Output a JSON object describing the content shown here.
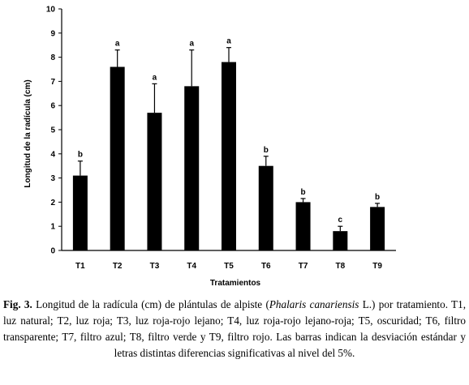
{
  "chart_data": {
    "type": "bar",
    "title": "",
    "xlabel": "Tratamientos",
    "ylabel": "Longitud de la radícula (cm)",
    "ylim": [
      0,
      10
    ],
    "yticks": [
      "0",
      "1",
      "2",
      "3",
      "4",
      "5",
      "6",
      "7",
      "8",
      "9",
      "10"
    ],
    "categories": [
      "T1",
      "T2",
      "T3",
      "T4",
      "T5",
      "T6",
      "T7",
      "T8",
      "T9"
    ],
    "values": [
      3.1,
      7.6,
      5.7,
      6.8,
      7.8,
      3.5,
      2.0,
      0.8,
      1.8
    ],
    "error": [
      0.6,
      0.7,
      1.2,
      1.5,
      0.6,
      0.4,
      0.15,
      0.2,
      0.15
    ],
    "significance_letters": [
      "b",
      "a",
      "a",
      "a",
      "a",
      "b",
      "b",
      "c",
      "b"
    ],
    "bar_color": "#000000",
    "grid": false,
    "legend": "none"
  },
  "caption": {
    "label": "Fig. 3.",
    "text_before_italic": " Longitud de la radícula (cm) de plántulas de alpiste (",
    "italic": "Phalaris canariensis",
    "text_after_italic": " L.) por tratamiento. T1, luz natural; T2, luz roja; T3, luz roja-rojo lejano; T4, luz roja-rojo lejano-roja; T5, oscuridad; T6, filtro transparente; T7, filtro azul; T8, filtro verde y T9, filtro rojo. Las barras  indican la desviación estándar y letras distintas diferencias significativas al nivel del 5%."
  }
}
